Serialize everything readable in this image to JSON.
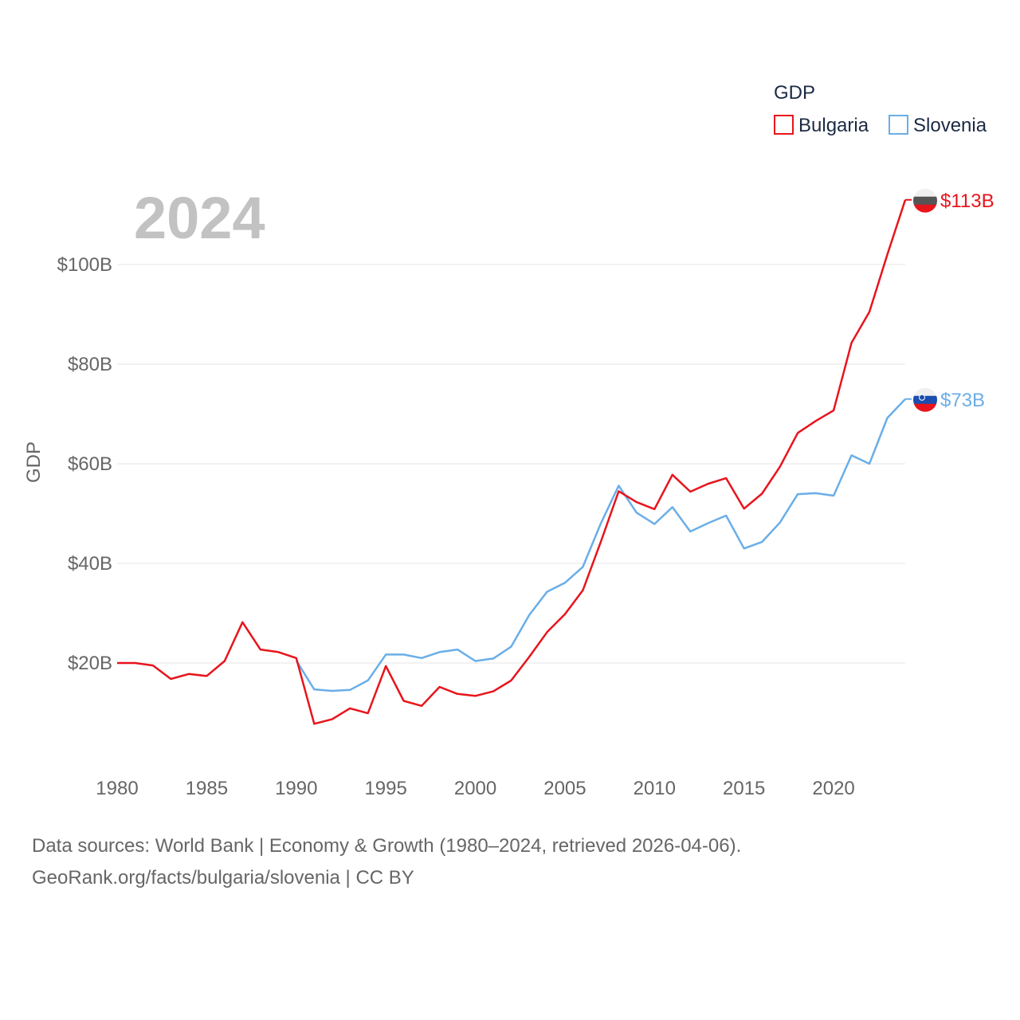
{
  "chart_data": {
    "type": "line",
    "title": "GDP",
    "current_year_label": "2024",
    "ylabel": "GDP",
    "xlabel": "",
    "x_ticks": [
      1980,
      1985,
      1990,
      1995,
      2000,
      2005,
      2010,
      2015,
      2020
    ],
    "y_ticks": [
      20,
      40,
      60,
      80,
      100
    ],
    "y_tick_labels": [
      "$20B",
      "$40B",
      "$60B",
      "$80B",
      "$100B"
    ],
    "xlim": [
      1980,
      2024
    ],
    "ylim": [
      0,
      120
    ],
    "grid": "horizontal",
    "legend_position": "top-right",
    "legend_title": "GDP",
    "series": [
      {
        "name": "Bulgaria",
        "color": "#e8141c",
        "end_label": "$113B",
        "flag_icon": "bulgaria-flag-icon",
        "x": [
          1980,
          1981,
          1982,
          1983,
          1984,
          1985,
          1986,
          1987,
          1988,
          1989,
          1990,
          1991,
          1992,
          1993,
          1994,
          1995,
          1996,
          1997,
          1998,
          1999,
          2000,
          2001,
          2002,
          2003,
          2004,
          2005,
          2006,
          2007,
          2008,
          2009,
          2010,
          2011,
          2012,
          2013,
          2014,
          2015,
          2016,
          2017,
          2018,
          2019,
          2020,
          2021,
          2022,
          2023,
          2024
        ],
        "values": [
          20.0,
          20.0,
          19.5,
          16.8,
          17.8,
          17.4,
          20.4,
          28.2,
          22.7,
          22.2,
          21.0,
          7.8,
          8.7,
          10.9,
          9.9,
          19.4,
          12.4,
          11.4,
          15.2,
          13.8,
          13.4,
          14.3,
          16.5,
          21.2,
          26.2,
          29.8,
          34.6,
          44.3,
          54.5,
          52.3,
          50.9,
          57.8,
          54.4,
          56.0,
          57.1,
          51.0,
          54.0,
          59.4,
          66.2,
          68.6,
          70.7,
          84.3,
          90.5,
          102.0,
          113.0
        ]
      },
      {
        "name": "Slovenia",
        "color": "#6aaee8",
        "end_label": "$73B",
        "flag_icon": "slovenia-flag-icon",
        "x": [
          1990,
          1991,
          1992,
          1993,
          1994,
          1995,
          1996,
          1997,
          1998,
          1999,
          2000,
          2001,
          2002,
          2003,
          2004,
          2005,
          2006,
          2007,
          2008,
          2009,
          2010,
          2011,
          2012,
          2013,
          2014,
          2015,
          2016,
          2017,
          2018,
          2019,
          2020,
          2021,
          2022,
          2023,
          2024
        ],
        "values": [
          20.5,
          14.7,
          14.4,
          14.6,
          16.5,
          21.7,
          21.7,
          21.0,
          22.2,
          22.7,
          20.4,
          20.9,
          23.3,
          29.6,
          34.3,
          36.1,
          39.3,
          48.0,
          55.6,
          50.2,
          47.9,
          51.3,
          46.4,
          48.1,
          49.6,
          43.0,
          44.3,
          48.2,
          53.9,
          54.1,
          53.6,
          61.7,
          60.0,
          69.2,
          73.0
        ]
      }
    ]
  },
  "footer": {
    "line1": "Data sources: World Bank | Economy & Growth (1980–2024, retrieved 2026-04-06).",
    "line2": "GeoRank.org/facts/bulgaria/slovenia | CC BY"
  }
}
